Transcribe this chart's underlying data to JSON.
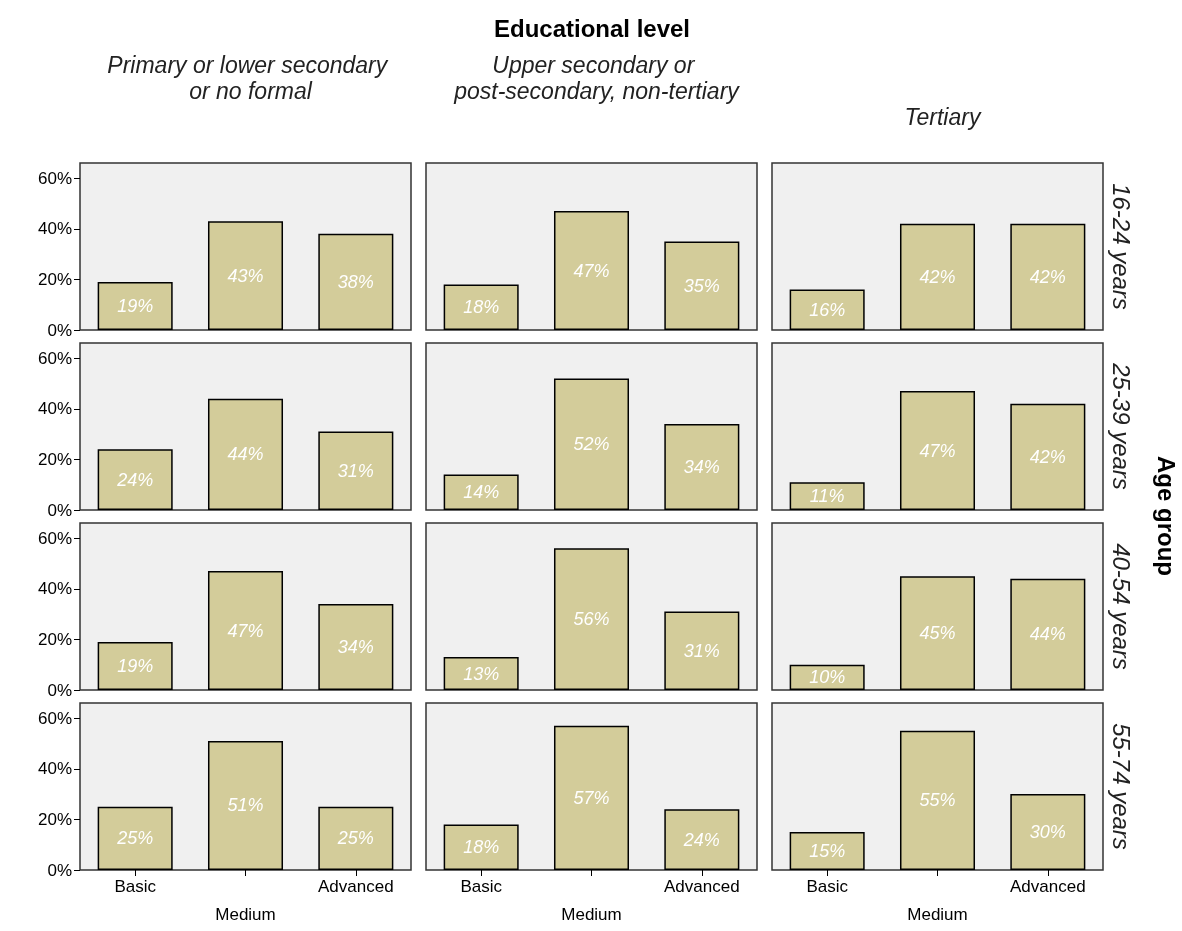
{
  "chart_data": [
    {
      "type": "bar",
      "title": "Primary or lower secondary or no formal",
      "annotations": [
        "Educational level",
        "Age group"
      ],
      "categories": [
        "Basic",
        "Medium",
        "Advanced"
      ],
      "values": [
        19,
        43,
        38
      ],
      "value_labels": [
        "19%",
        "43%",
        "38%"
      ],
      "color": "#d3cc9a",
      "ylim": [
        0,
        66
      ],
      "yticks": [
        {
          "value": 0,
          "label": "0%"
        },
        {
          "value": 20,
          "label": "20%"
        },
        {
          "value": 40,
          "label": "40%"
        },
        {
          "value": 60,
          "label": "60%"
        }
      ],
      "tick_labels": "y"
    },
    {
      "type": "bar",
      "title": "Upper secondary or post-secondary, non-tertiary",
      "categories": [
        "Basic",
        "Medium",
        "Advanced"
      ],
      "values": [
        18,
        47,
        35
      ],
      "value_labels": [
        "18%",
        "47%",
        "35%"
      ],
      "color": "#d3cc9a",
      "ylim": [
        0,
        66
      ],
      "tick_labels": false
    },
    {
      "type": "bar",
      "title": "Tertiary",
      "y2label": "16-24 years",
      "categories": [
        "Basic",
        "Medium",
        "Advanced"
      ],
      "values": [
        16,
        42,
        42
      ],
      "value_labels": [
        "16%",
        "42%",
        "42%"
      ],
      "color": "#d3cc9a",
      "ylim": [
        0,
        66
      ],
      "tick_labels": false
    },
    {
      "type": "bar",
      "categories": [
        "Basic",
        "Medium",
        "Advanced"
      ],
      "values": [
        24,
        44,
        31
      ],
      "value_labels": [
        "24%",
        "44%",
        "31%"
      ],
      "color": "#d3cc9a",
      "ylim": [
        0,
        66
      ],
      "yticks": [
        {
          "value": 0,
          "label": "0%"
        },
        {
          "value": 20,
          "label": "20%"
        },
        {
          "value": 40,
          "label": "40%"
        },
        {
          "value": 60,
          "label": "60%"
        }
      ],
      "tick_labels": "y"
    },
    {
      "type": "bar",
      "categories": [
        "Basic",
        "Medium",
        "Advanced"
      ],
      "values": [
        14,
        52,
        34
      ],
      "value_labels": [
        "14%",
        "52%",
        "34%"
      ],
      "color": "#d3cc9a",
      "ylim": [
        0,
        66
      ],
      "tick_labels": false
    },
    {
      "type": "bar",
      "y2label": "25-39 years",
      "categories": [
        "Basic",
        "Medium",
        "Advanced"
      ],
      "values": [
        11,
        47,
        42
      ],
      "value_labels": [
        "11%",
        "47%",
        "42%"
      ],
      "color": "#d3cc9a",
      "ylim": [
        0,
        66
      ],
      "tick_labels": false
    },
    {
      "type": "bar",
      "categories": [
        "Basic",
        "Medium",
        "Advanced"
      ],
      "values": [
        19,
        47,
        34
      ],
      "value_labels": [
        "19%",
        "47%",
        "34%"
      ],
      "color": "#d3cc9a",
      "ylim": [
        0,
        66
      ],
      "yticks": [
        {
          "value": 0,
          "label": "0%"
        },
        {
          "value": 20,
          "label": "20%"
        },
        {
          "value": 40,
          "label": "40%"
        },
        {
          "value": 60,
          "label": "60%"
        }
      ],
      "tick_labels": "y"
    },
    {
      "type": "bar",
      "categories": [
        "Basic",
        "Medium",
        "Advanced"
      ],
      "values": [
        13,
        56,
        31
      ],
      "value_labels": [
        "13%",
        "56%",
        "31%"
      ],
      "color": "#d3cc9a",
      "ylim": [
        0,
        66
      ],
      "tick_labels": false
    },
    {
      "type": "bar",
      "y2label": "40-54 years",
      "categories": [
        "Basic",
        "Medium",
        "Advanced"
      ],
      "values": [
        10,
        45,
        44
      ],
      "value_labels": [
        "10%",
        "45%",
        "44%"
      ],
      "color": "#d3cc9a",
      "ylim": [
        0,
        66
      ],
      "tick_labels": false
    },
    {
      "type": "bar",
      "categories": [
        "Basic",
        "Medium",
        "Advanced"
      ],
      "values": [
        25,
        51,
        25
      ],
      "value_labels": [
        "25%",
        "51%",
        "25%"
      ],
      "color": "#d3cc9a",
      "ylim": [
        0,
        66
      ],
      "yticks": [
        {
          "value": 0,
          "label": "0%"
        },
        {
          "value": 20,
          "label": "20%"
        },
        {
          "value": 40,
          "label": "40%"
        },
        {
          "value": 60,
          "label": "60%"
        }
      ]
    },
    {
      "type": "bar",
      "categories": [
        "Basic",
        "Medium",
        "Advanced"
      ],
      "values": [
        18,
        57,
        24
      ],
      "value_labels": [
        "18%",
        "57%",
        "24%"
      ],
      "color": "#d3cc9a",
      "ylim": [
        0,
        66
      ],
      "tick_labels": "x"
    },
    {
      "type": "bar",
      "y2label": "55-74 years",
      "categories": [
        "Basic",
        "Medium",
        "Advanced"
      ],
      "values": [
        15,
        55,
        30
      ],
      "value_labels": [
        "15%",
        "55%",
        "30%"
      ],
      "color": "#d3cc9a",
      "ylim": [
        0,
        66
      ],
      "tick_labels": "x"
    }
  ]
}
